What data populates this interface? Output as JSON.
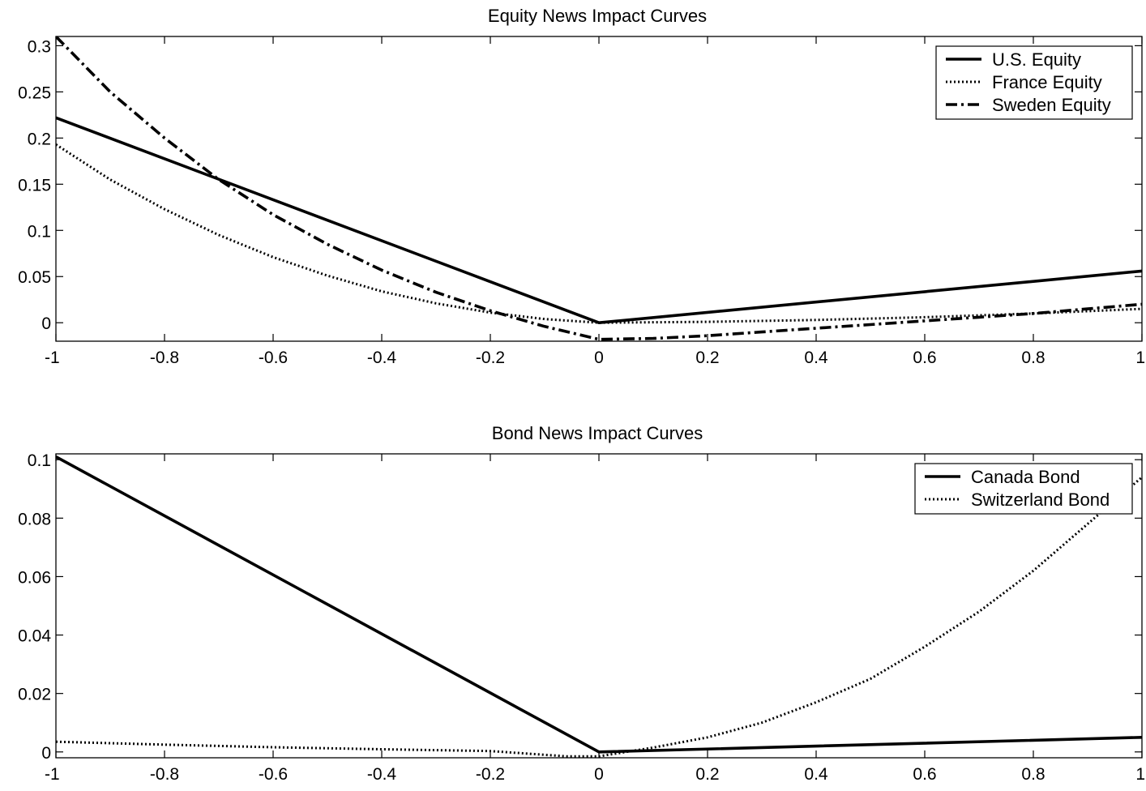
{
  "chart_data": [
    {
      "type": "line",
      "title": "Equity News Impact Curves",
      "xlabel": "",
      "ylabel": "",
      "xlim": [
        -1,
        1
      ],
      "ylim": [
        -0.02,
        0.31
      ],
      "xticks": [
        "-1",
        "-0.8",
        "-0.6",
        "-0.4",
        "-0.2",
        "0",
        "0.2",
        "0.4",
        "0.6",
        "0.8",
        "1"
      ],
      "yticks": [
        "0",
        "0.05",
        "0.1",
        "0.15",
        "0.2",
        "0.25",
        "0.3"
      ],
      "grid": false,
      "legend_position": "top-right",
      "series": [
        {
          "name": "U.S. Equity",
          "style": "solid",
          "x": [
            -1,
            0,
            1
          ],
          "y": [
            0.222,
            0.0,
            0.056
          ]
        },
        {
          "name": "France Equity",
          "style": "dotted",
          "x": [
            -1,
            -0.9,
            -0.8,
            -0.7,
            -0.6,
            -0.5,
            -0.4,
            -0.3,
            -0.2,
            -0.1,
            0,
            0.2,
            0.4,
            0.6,
            0.8,
            1
          ],
          "y": [
            0.193,
            0.155,
            0.123,
            0.095,
            0.071,
            0.051,
            0.034,
            0.021,
            0.011,
            0.004,
            0.0,
            0.001,
            0.003,
            0.006,
            0.01,
            0.015
          ]
        },
        {
          "name": "Sweden Equity",
          "style": "dashdot",
          "x": [
            -1,
            -0.9,
            -0.8,
            -0.7,
            -0.6,
            -0.5,
            -0.4,
            -0.3,
            -0.2,
            -0.1,
            0,
            0.1,
            0.2,
            0.3,
            0.4,
            0.5,
            0.6,
            0.7,
            0.8,
            0.9,
            1
          ],
          "y": [
            0.31,
            0.25,
            0.2,
            0.155,
            0.117,
            0.085,
            0.057,
            0.033,
            0.013,
            -0.004,
            -0.018,
            -0.017,
            -0.014,
            -0.01,
            -0.006,
            -0.002,
            0.002,
            0.006,
            0.01,
            0.015,
            0.02
          ]
        }
      ]
    },
    {
      "type": "line",
      "title": "Bond News Impact Curves",
      "xlabel": "",
      "ylabel": "",
      "xlim": [
        -1,
        1
      ],
      "ylim": [
        -0.002,
        0.102
      ],
      "xticks": [
        "-1",
        "-0.8",
        "-0.6",
        "-0.4",
        "-0.2",
        "0",
        "0.2",
        "0.4",
        "0.6",
        "0.8",
        "1"
      ],
      "yticks": [
        "0",
        "0.02",
        "0.04",
        "0.06",
        "0.08",
        "0.1"
      ],
      "grid": false,
      "legend_position": "top-right",
      "series": [
        {
          "name": "Canada Bond",
          "style": "solid",
          "x": [
            -1,
            0,
            1
          ],
          "y": [
            0.101,
            0.0,
            0.005
          ]
        },
        {
          "name": "Switzerland Bond",
          "style": "dotted",
          "x": [
            -1,
            -0.8,
            -0.6,
            -0.4,
            -0.2,
            -0.06,
            0,
            0.1,
            0.2,
            0.3,
            0.4,
            0.5,
            0.6,
            0.7,
            0.8,
            0.9,
            1
          ],
          "y": [
            0.0035,
            0.0025,
            0.0016,
            0.0009,
            0.0003,
            -0.0015,
            -0.0015,
            0.0015,
            0.005,
            0.01,
            0.017,
            0.025,
            0.036,
            0.048,
            0.062,
            0.078,
            0.094
          ]
        }
      ]
    }
  ]
}
